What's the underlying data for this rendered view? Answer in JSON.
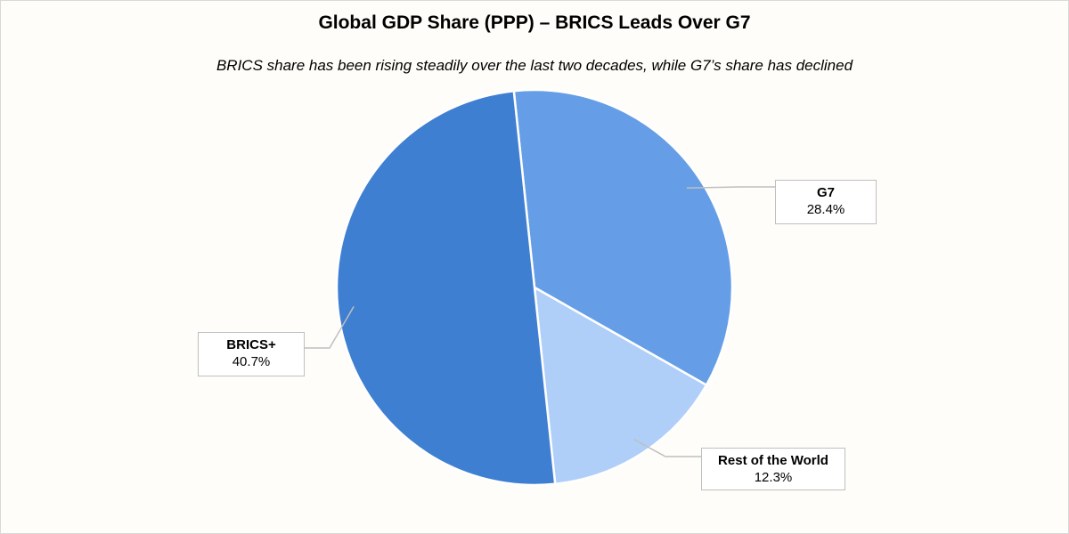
{
  "chart_data": {
    "type": "pie",
    "title": "Global GDP Share (PPP) – BRICS Leads Over G7",
    "subtitle": "BRICS share has been rising steadily over the last two decades, while G7’s share has declined",
    "slices": [
      {
        "name": "G7",
        "value": 28.4,
        "label": "28.4%",
        "color": "#659ee6"
      },
      {
        "name": "Rest of the World",
        "value": 12.3,
        "label": "12.3%",
        "color": "#afcff9"
      },
      {
        "name": "BRICS+",
        "value": 40.7,
        "label": "40.7%",
        "color": "#3f7fd1"
      }
    ],
    "start_angle_deg": -6,
    "direction": "clockwise",
    "legend": "none",
    "data_labels": "callout-boxes"
  }
}
